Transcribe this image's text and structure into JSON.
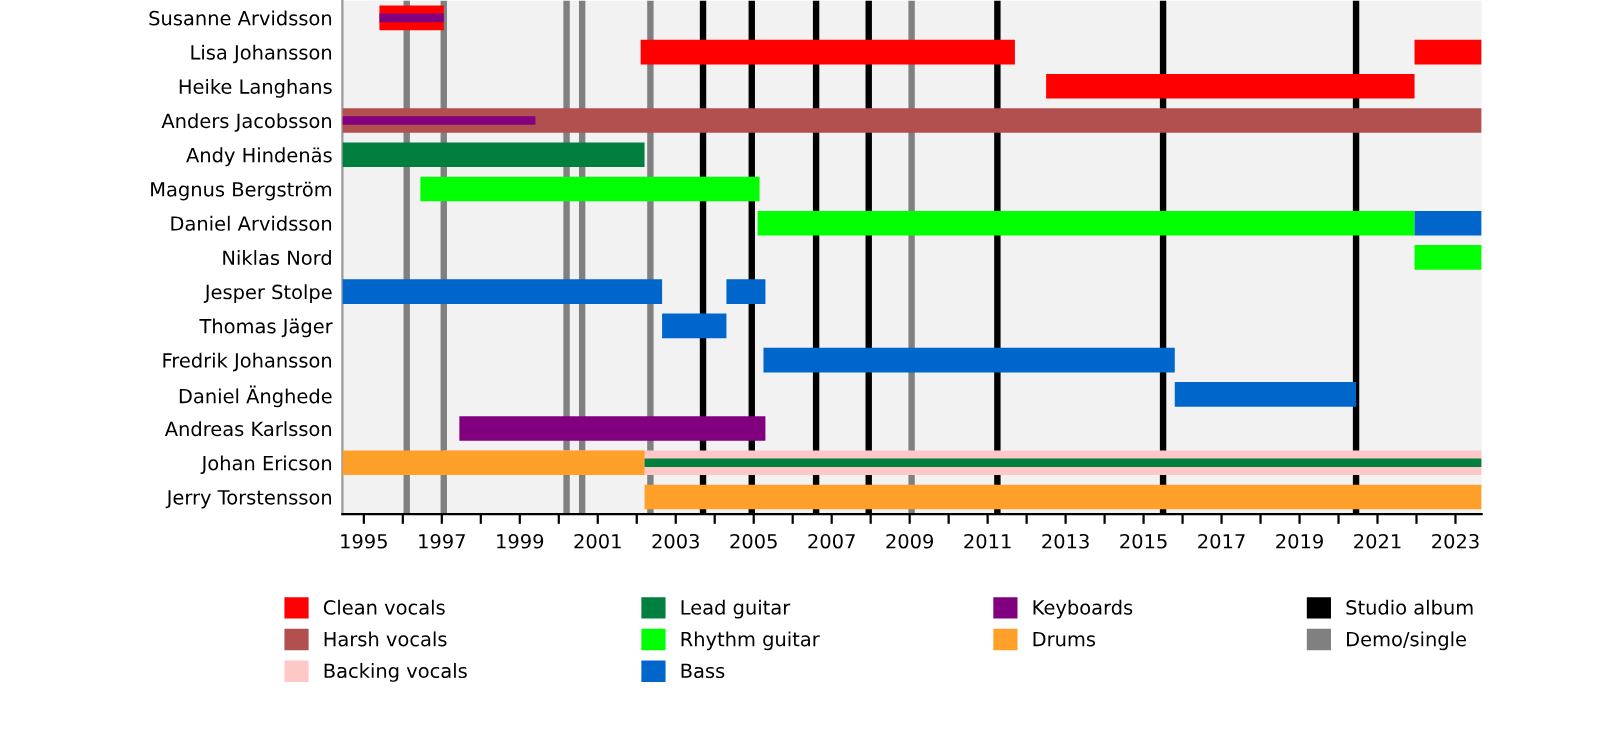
{
  "chart_data": {
    "type": "bar",
    "orientation": "horizontal",
    "categories": [
      "Susanne Arvidsson",
      "Lisa Johansson",
      "Heike Langhans",
      "Anders Jacobsson",
      "Andy Hindenäs",
      "Magnus Bergström",
      "Daniel Arvidsson",
      "Niklas Nord",
      "Jesper Stolpe",
      "Thomas Jäger",
      "Fredrik Johansson",
      "Daniel Änghede",
      "Andreas Karlsson",
      "Johan Ericson",
      "Jerry Torstensson"
    ],
    "series": [
      {
        "name": "Clean vocals",
        "color": "#ff0000",
        "base": [
          1995.4,
          2002.1,
          2012.5,
          null,
          null,
          null,
          null,
          null,
          null,
          null,
          null,
          null,
          null,
          null,
          null
        ],
        "values": [
          1.65,
          9.6,
          9.45,
          null,
          null,
          null,
          null,
          null,
          null,
          null,
          null,
          null,
          null,
          null,
          null
        ]
      },
      {
        "name": "Harsh vocals",
        "color": "#b24f4f",
        "base": [
          null,
          null,
          null,
          1994.45,
          null,
          null,
          null,
          null,
          null,
          null,
          null,
          null,
          null,
          null,
          null
        ],
        "values": [
          null,
          null,
          null,
          29.22,
          null,
          null,
          null,
          null,
          null,
          null,
          null,
          null,
          null,
          null,
          null
        ]
      },
      {
        "name": "Backing vocals",
        "color": "#ffc8c8",
        "base": [
          null,
          null,
          null,
          null,
          null,
          null,
          null,
          null,
          null,
          null,
          null,
          null,
          null,
          1997.05,
          null
        ],
        "values": [
          null,
          null,
          null,
          null,
          null,
          null,
          null,
          null,
          null,
          null,
          null,
          null,
          null,
          26.62,
          null
        ]
      },
      {
        "name": "Lead guitar",
        "color": "#007f3f",
        "base": [
          null,
          null,
          null,
          null,
          1994.45,
          null,
          null,
          null,
          null,
          null,
          null,
          null,
          null,
          2002.2,
          null
        ],
        "values": [
          null,
          null,
          null,
          null,
          7.75,
          null,
          null,
          null,
          null,
          null,
          null,
          null,
          null,
          21.47,
          null
        ]
      },
      {
        "name": "Rhythm guitar",
        "color": "#00ff00",
        "base": [
          null,
          null,
          null,
          null,
          null,
          1996.45,
          2005.1,
          2021.95,
          null,
          null,
          null,
          null,
          null,
          null,
          null
        ],
        "values": [
          null,
          null,
          null,
          null,
          null,
          8.7,
          16.85,
          1.72,
          null,
          null,
          null,
          null,
          null,
          null,
          null
        ]
      },
      {
        "name": "Bass",
        "color": "#0066cc",
        "base": [
          null,
          null,
          null,
          null,
          null,
          null,
          2021.95,
          null,
          1994.45,
          2002.65,
          2005.25,
          2015.8,
          null,
          null,
          null
        ],
        "values": [
          null,
          null,
          null,
          null,
          null,
          null,
          1.72,
          null,
          8.2,
          1.65,
          10.55,
          4.65,
          null,
          null,
          null
        ]
      },
      {
        "name": "Keyboards",
        "color": "#800080",
        "base": [
          1995.4,
          null,
          null,
          1994.45,
          null,
          null,
          null,
          null,
          null,
          null,
          null,
          null,
          1997.45,
          null,
          null
        ],
        "values": [
          1.65,
          null,
          null,
          4.95,
          null,
          null,
          null,
          null,
          null,
          null,
          null,
          null,
          7.85,
          null,
          null
        ]
      },
      {
        "name": "Drums",
        "color": "#ffa02a",
        "base": [
          null,
          null,
          null,
          null,
          null,
          null,
          null,
          null,
          null,
          null,
          null,
          null,
          null,
          1994.45,
          2002.2
        ],
        "values": [
          null,
          null,
          null,
          null,
          null,
          null,
          null,
          null,
          null,
          null,
          null,
          null,
          null,
          7.75,
          21.47
        ]
      },
      {
        "color": "#ff0000",
        "base": [
          null,
          2021.95,
          null,
          null,
          null,
          null,
          null,
          null,
          null,
          null,
          null,
          null,
          null,
          null,
          null
        ],
        "values": [
          null,
          1.72,
          null,
          null,
          null,
          null,
          null,
          null,
          null,
          null,
          null,
          null,
          null,
          null,
          null
        ]
      },
      {
        "color": "#0066cc",
        "base": [
          null,
          null,
          null,
          null,
          null,
          null,
          null,
          null,
          2004.3,
          null,
          null,
          null,
          null,
          null,
          null
        ],
        "values": [
          null,
          null,
          null,
          null,
          null,
          null,
          null,
          null,
          1.0,
          null,
          null,
          null,
          null,
          null,
          null
        ]
      }
    ],
    "ref_lines": [
      {
        "axis": "x",
        "value": 2003.7,
        "label": "Studio album",
        "color": "#000000"
      },
      {
        "axis": "x",
        "value": 2004.95,
        "color": "#000000"
      },
      {
        "axis": "x",
        "value": 2006.6,
        "color": "#000000"
      },
      {
        "axis": "x",
        "value": 2007.95,
        "color": "#000000"
      },
      {
        "axis": "x",
        "value": 2011.25,
        "color": "#000000"
      },
      {
        "axis": "x",
        "value": 2015.5,
        "color": "#000000"
      },
      {
        "axis": "x",
        "value": 2020.45,
        "color": "#000000"
      },
      {
        "axis": "x",
        "value": 1996.1,
        "label": "Demo/single",
        "color": "#808080"
      },
      {
        "axis": "x",
        "value": 1997.05,
        "color": "#808080"
      },
      {
        "axis": "x",
        "value": 2000.2,
        "color": "#808080"
      },
      {
        "axis": "x",
        "value": 2000.6,
        "color": "#808080"
      },
      {
        "axis": "x",
        "value": 2002.35,
        "color": "#808080"
      },
      {
        "axis": "x",
        "value": 2009.05,
        "color": "#808080"
      }
    ],
    "xlim": [
      1994.45,
      2023.67
    ],
    "xticks": [
      1995,
      {
        "value": 1996,
        "label": null
      },
      1997,
      {
        "value": 1998,
        "label": null
      },
      1999,
      {
        "value": 2000,
        "label": null
      },
      2001,
      {
        "value": 2002,
        "label": null
      },
      2003,
      {
        "value": 2004,
        "label": null
      },
      2005,
      {
        "value": 2006,
        "label": null
      },
      2007,
      {
        "value": 2008,
        "label": null
      },
      2009,
      {
        "value": 2010,
        "label": null
      },
      2011,
      {
        "value": 2012,
        "label": null
      },
      2013,
      {
        "value": 2014,
        "label": null
      },
      2015,
      {
        "value": 2016,
        "label": null
      },
      2017,
      {
        "value": 2018,
        "label": null
      },
      2019,
      {
        "value": 2020,
        "label": null
      },
      2021,
      {
        "value": 2022,
        "label": null
      },
      2023
    ],
    "legend": "bottom",
    "grid": false
  }
}
